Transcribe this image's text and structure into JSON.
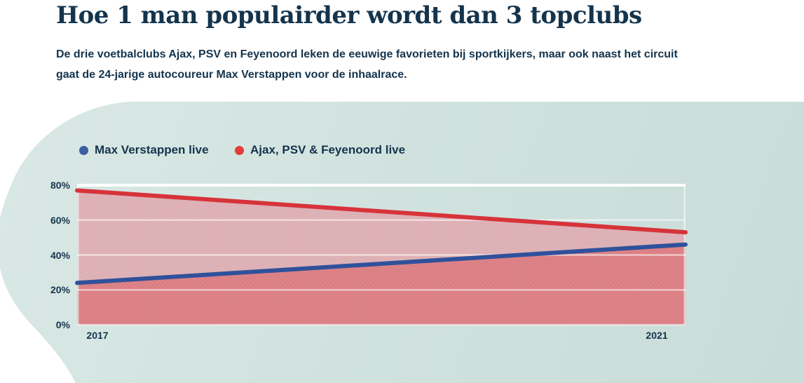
{
  "header": {
    "title": "Hoe 1 man populairder wordt dan 3 topclubs",
    "subtitle_lines": [
      "De drie voetbalclubs Ajax, PSV en Feyenoord leken de eeuwige favorieten bij sportkijkers, maar ook naast het circuit",
      "gaat de 24-jarige autocoureur Max Verstappen voor de inhaalrace."
    ]
  },
  "legend": [
    {
      "label": "Max Verstappen live",
      "color": "#3c5d9e"
    },
    {
      "label": "Ajax, PSV & Feyenoord live",
      "color": "#e23d3d"
    }
  ],
  "chart_data": {
    "type": "area",
    "x": [
      "2017",
      "2021"
    ],
    "series": [
      {
        "name": "Ajax, PSV & Feyenoord live",
        "values": [
          77,
          53
        ],
        "line_color": "#d7333a",
        "fill_color": "#ddb0b5"
      },
      {
        "name": "Max Verstappen live",
        "values": [
          24,
          46
        ],
        "line_color": "#2f519b",
        "fill_color": "#db7f84"
      }
    ],
    "ylim": [
      0,
      80
    ],
    "ytick_labels": [
      "0%",
      "20%",
      "40%",
      "60%",
      "80%"
    ],
    "ytick_values": [
      0,
      20,
      40,
      60,
      80
    ],
    "xtick_labels": [
      "2017",
      "2021"
    ],
    "grid": "horizontal white gridlines, top gridline solid white",
    "legend_position": "top-left"
  },
  "colors": {
    "page_background": "#ffffff",
    "blob_background": "#d2e2de",
    "text": "#14344d",
    "gridline": "#ffffff"
  }
}
